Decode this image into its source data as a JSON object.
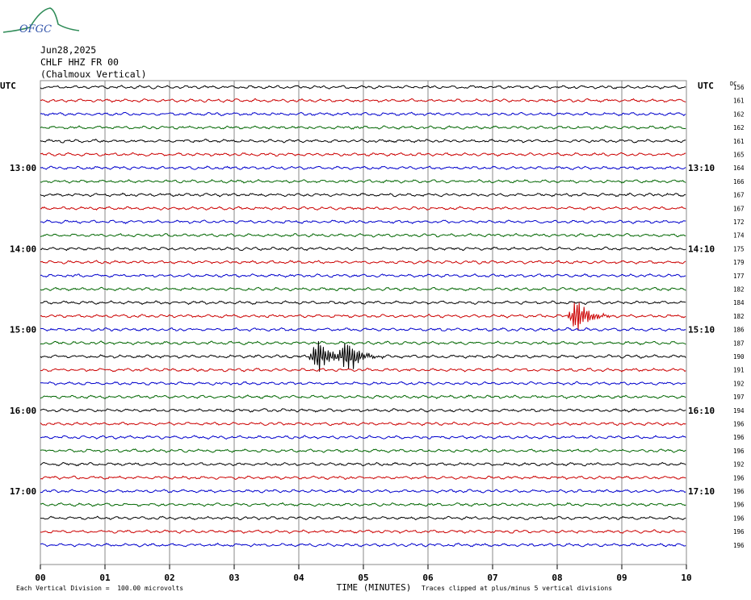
{
  "header": {
    "date": "Jun28,2025",
    "station": "CHLF HHZ FR 00",
    "location": "(Chalmoux Vertical)",
    "logo_text": "OFGC"
  },
  "axis": {
    "left_label": "UTC",
    "right_label": "UTC",
    "dc_label": "DC",
    "xlabel": "TIME (MINUTES)",
    "x_ticks": [
      "00",
      "01",
      "02",
      "03",
      "04",
      "05",
      "06",
      "07",
      "08",
      "09",
      "10"
    ]
  },
  "footer": {
    "scale_note": "Each Vertical Division =  100.00 microvolts",
    "clip_note": "Traces clipped at plus/minus 5 vertical divisions"
  },
  "chart_data": {
    "type": "line",
    "xlim": [
      0,
      10
    ],
    "line_minutes": 10,
    "colors": [
      "#000000",
      "#cc0000",
      "#0000cc",
      "#006600"
    ],
    "left_time_labels": [
      {
        "line": 6,
        "label": "13:00"
      },
      {
        "line": 12,
        "label": "14:00"
      },
      {
        "line": 18,
        "label": "15:00"
      },
      {
        "line": 24,
        "label": "16:00"
      },
      {
        "line": 30,
        "label": "17:00"
      }
    ],
    "right_time_labels": [
      {
        "line": 6,
        "label": "13:10"
      },
      {
        "line": 12,
        "label": "14:10"
      },
      {
        "line": 18,
        "label": "15:10"
      },
      {
        "line": 24,
        "label": "16:10"
      },
      {
        "line": 30,
        "label": "17:10"
      }
    ],
    "dc_offsets": [
      156,
      161,
      162,
      162,
      161,
      165,
      164,
      166,
      167,
      167,
      172,
      174,
      175,
      179,
      177,
      182,
      184,
      182,
      186,
      187,
      190,
      191,
      192,
      197,
      194,
      196,
      196,
      196,
      192,
      196,
      196,
      196,
      196,
      196,
      196
    ],
    "events": [
      {
        "line": 17,
        "minute": 8.3,
        "amplitude": "high"
      },
      {
        "line": 20,
        "minute": 4.3,
        "amplitude": "high"
      },
      {
        "line": 20,
        "minute": 4.75,
        "amplitude": "high"
      }
    ]
  }
}
